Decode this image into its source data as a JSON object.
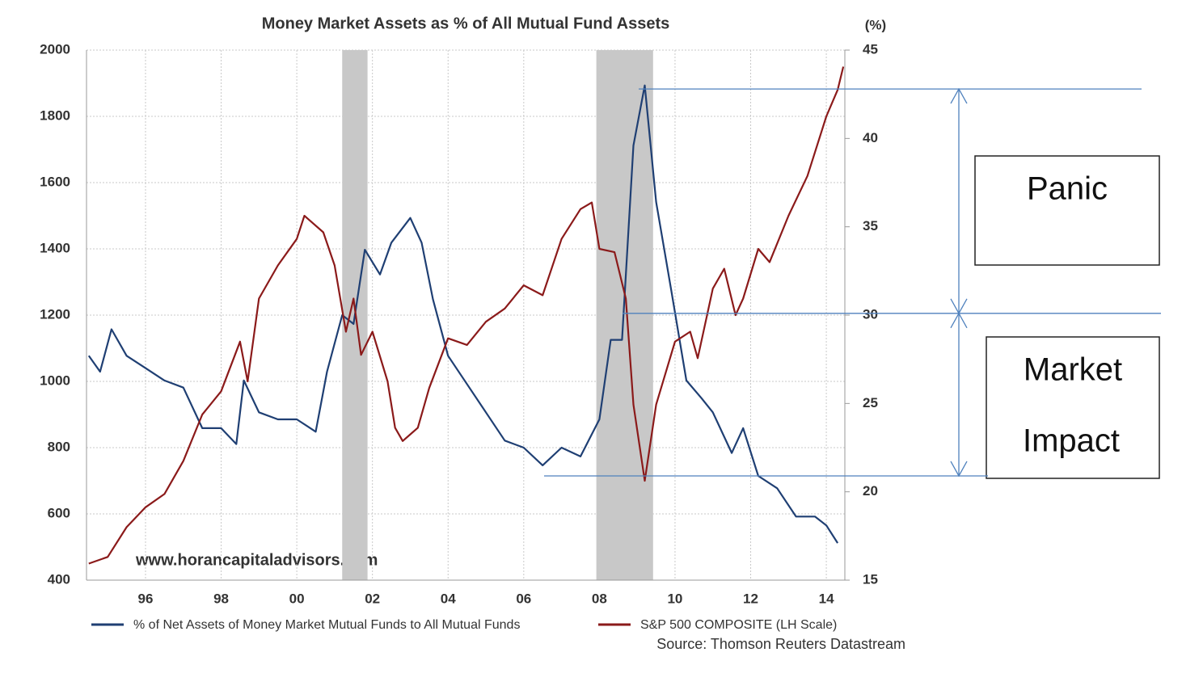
{
  "chart_data": {
    "type": "line",
    "title": "Money Market Assets as % of All Mutual Fund Assets",
    "y2_label": "(%)",
    "watermark": "www.horancapitaladvisors.com",
    "source": "Source: Thomson Reuters Datastream",
    "xlim": [
      1994.44,
      2014.49
    ],
    "xticks": [
      {
        "value": 1996,
        "label": "96"
      },
      {
        "value": 1998,
        "label": "98"
      },
      {
        "value": 2000,
        "label": "00"
      },
      {
        "value": 2002,
        "label": "02"
      },
      {
        "value": 2004,
        "label": "04"
      },
      {
        "value": 2006,
        "label": "06"
      },
      {
        "value": 2008,
        "label": "08"
      },
      {
        "value": 2010,
        "label": "10"
      },
      {
        "value": 2012,
        "label": "12"
      },
      {
        "value": 2014,
        "label": "14"
      }
    ],
    "ylim": [
      400,
      2000
    ],
    "yticks": [
      400,
      600,
      800,
      1000,
      1200,
      1400,
      1600,
      1800,
      2000
    ],
    "y2lim": [
      15,
      45
    ],
    "y2ticks": [
      15,
      20,
      25,
      30,
      35,
      40,
      45
    ],
    "grid": true,
    "legend": "bottom",
    "shaded_regions": [
      [
        2001.2,
        2001.87
      ],
      [
        2007.92,
        2009.42
      ]
    ],
    "shade_color": "#c8c8c8",
    "series": [
      {
        "name": "% of Net Assets of Money Market Mutual Funds to All Mutual Funds",
        "color": "#1f3f73",
        "axis": "y2",
        "x": [
          1994.5,
          1994.8,
          1995.1,
          1995.5,
          1996.0,
          1996.5,
          1997.0,
          1997.5,
          1998.0,
          1998.4,
          1998.6,
          1999.0,
          1999.5,
          2000.0,
          2000.5,
          2000.8,
          2001.2,
          2001.5,
          2001.8,
          2002.2,
          2002.5,
          2003.0,
          2003.3,
          2003.6,
          2004.0,
          2004.5,
          2005.0,
          2005.5,
          2006.0,
          2006.5,
          2007.0,
          2007.5,
          2008.0,
          2008.3,
          2008.6,
          2008.9,
          2009.2,
          2009.5,
          2009.9,
          2010.3,
          2010.7,
          2011.0,
          2011.5,
          2011.8,
          2012.2,
          2012.7,
          2013.2,
          2013.7,
          2014.0,
          2014.3
        ],
        "values": [
          27.7,
          26.8,
          29.2,
          27.7,
          27.0,
          26.3,
          25.9,
          23.6,
          23.6,
          22.7,
          26.3,
          24.5,
          24.1,
          24.1,
          23.4,
          26.8,
          30.0,
          29.5,
          33.7,
          32.3,
          34.1,
          35.5,
          34.1,
          30.9,
          27.7,
          26.1,
          24.5,
          22.9,
          22.5,
          21.5,
          22.5,
          22.0,
          24.1,
          28.6,
          28.6,
          39.6,
          43.0,
          36.4,
          31.4,
          26.3,
          25.3,
          24.5,
          22.2,
          23.6,
          20.9,
          20.2,
          18.6,
          18.6,
          18.1,
          17.1
        ]
      },
      {
        "name": "S&P 500 COMPOSITE (LH Scale)",
        "color": "#8b1a1a",
        "axis": "y",
        "x": [
          1994.5,
          1995.0,
          1995.5,
          1996.0,
          1996.5,
          1997.0,
          1997.5,
          1998.0,
          1998.5,
          1998.7,
          1999.0,
          1999.5,
          2000.0,
          2000.2,
          2000.7,
          2001.0,
          2001.3,
          2001.5,
          2001.7,
          2002.0,
          2002.4,
          2002.6,
          2002.8,
          2003.2,
          2003.5,
          2004.0,
          2004.5,
          2005.0,
          2005.5,
          2006.0,
          2006.5,
          2007.0,
          2007.5,
          2007.8,
          2008.0,
          2008.4,
          2008.7,
          2008.9,
          2009.2,
          2009.5,
          2010.0,
          2010.4,
          2010.6,
          2011.0,
          2011.3,
          2011.6,
          2011.8,
          2012.2,
          2012.5,
          2013.0,
          2013.5,
          2014.0,
          2014.3,
          2014.45
        ],
        "values": [
          450,
          470,
          560,
          620,
          660,
          760,
          900,
          970,
          1120,
          1000,
          1250,
          1350,
          1430,
          1500,
          1450,
          1350,
          1150,
          1250,
          1080,
          1150,
          1000,
          860,
          820,
          860,
          980,
          1130,
          1110,
          1180,
          1220,
          1290,
          1260,
          1430,
          1520,
          1540,
          1400,
          1390,
          1250,
          930,
          700,
          930,
          1120,
          1150,
          1070,
          1280,
          1340,
          1200,
          1250,
          1400,
          1360,
          1500,
          1620,
          1800,
          1880,
          1950
        ]
      }
    ],
    "annotation_levels": [
      42.8,
      30.1,
      20.9
    ],
    "annotations": [
      "Panic",
      "Market",
      "Impact"
    ]
  }
}
